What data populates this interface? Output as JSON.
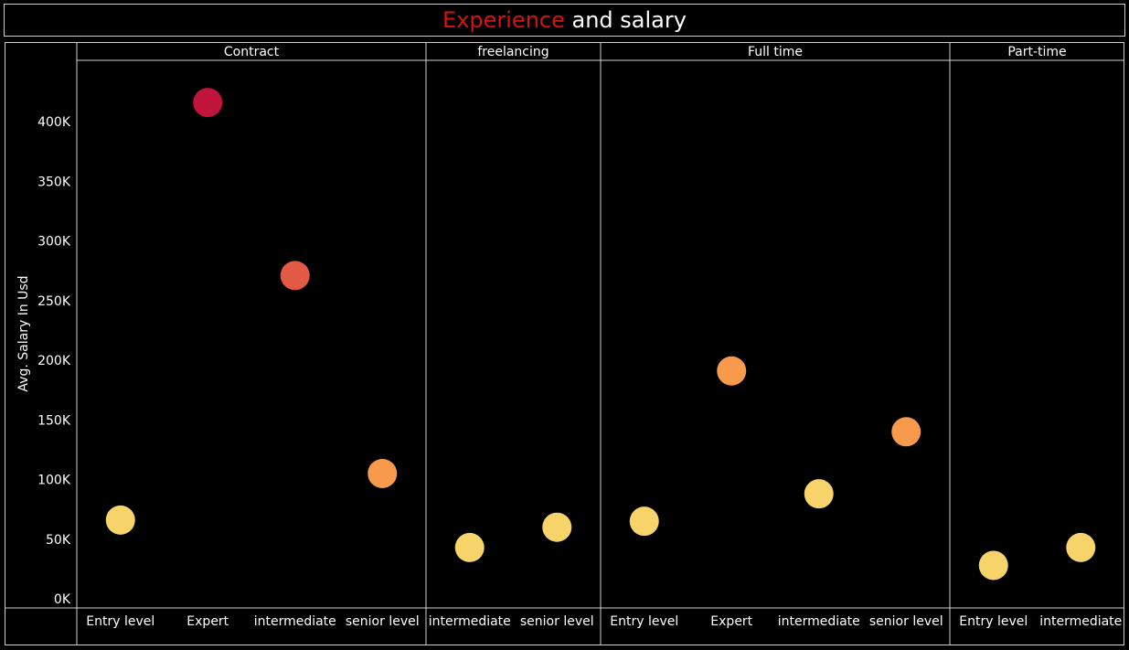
{
  "title": {
    "accent": "Experience",
    "rest": " and salary"
  },
  "chart_data": {
    "type": "scatter",
    "ylabel": "Avg. Salary In Usd",
    "ylim": [
      0,
      430000
    ],
    "yticks": [
      0,
      50000,
      100000,
      150000,
      200000,
      250000,
      300000,
      350000,
      400000
    ],
    "ytick_labels": [
      "0K",
      "50K",
      "100K",
      "150K",
      "200K",
      "250K",
      "300K",
      "350K",
      "400K"
    ],
    "color_scale": {
      "low": "#f6d46a",
      "mid": "#f79a4c",
      "high": "#e35a44",
      "max": "#c0143c"
    },
    "panels": [
      {
        "name": "Contract",
        "points": [
          {
            "category": "Entry level",
            "value": 66000
          },
          {
            "category": "Expert",
            "value": 416000
          },
          {
            "category": "intermediate",
            "value": 271000
          },
          {
            "category": "senior level",
            "value": 105000
          }
        ]
      },
      {
        "name": "freelancing",
        "points": [
          {
            "category": "intermediate",
            "value": 43000
          },
          {
            "category": "senior level",
            "value": 60000
          }
        ]
      },
      {
        "name": "Full time",
        "points": [
          {
            "category": "Entry level",
            "value": 65000
          },
          {
            "category": "Expert",
            "value": 191000
          },
          {
            "category": "intermediate",
            "value": 88000
          },
          {
            "category": "senior level",
            "value": 140000
          }
        ]
      },
      {
        "name": "Part-time",
        "points": [
          {
            "category": "Entry level",
            "value": 28000
          },
          {
            "category": "intermediate",
            "value": 43000
          }
        ]
      }
    ],
    "grid": false,
    "legend": "none"
  }
}
